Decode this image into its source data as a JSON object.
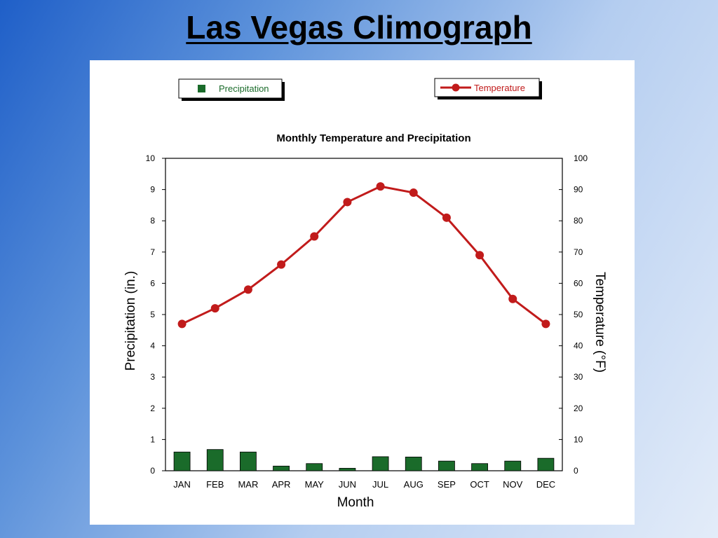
{
  "slide": {
    "title": "Las Vegas Climograph"
  },
  "chart_data": {
    "type": "bar",
    "title": "Monthly Temperature and Precipitation",
    "xlabel": "Month",
    "ylabel_left": "Precipitation (in.)",
    "ylabel_right": "Temperature (°F)",
    "categories": [
      "JAN",
      "FEB",
      "MAR",
      "APR",
      "MAY",
      "JUN",
      "JUL",
      "AUG",
      "SEP",
      "OCT",
      "NOV",
      "DEC"
    ],
    "left_axis": {
      "min": 0,
      "max": 10,
      "ticks": [
        0,
        1,
        2,
        3,
        4,
        5,
        6,
        7,
        8,
        9,
        10
      ]
    },
    "right_axis": {
      "min": 0,
      "max": 100,
      "ticks": [
        0,
        10,
        20,
        30,
        40,
        50,
        60,
        70,
        80,
        90,
        100
      ]
    },
    "series": [
      {
        "name": "Precipitation",
        "kind": "bar",
        "axis": "left",
        "color": "#1a6b2a",
        "values": [
          0.6,
          0.68,
          0.6,
          0.15,
          0.23,
          0.08,
          0.45,
          0.44,
          0.31,
          0.23,
          0.31,
          0.4
        ]
      },
      {
        "name": "Temperature",
        "kind": "line",
        "axis": "right",
        "color": "#c11b1b",
        "values": [
          47,
          52,
          58,
          66,
          75,
          86,
          91,
          89,
          81,
          69,
          55,
          47
        ]
      }
    ],
    "legend": {
      "placement": "top",
      "entries": [
        "Precipitation",
        "Temperature"
      ]
    }
  }
}
